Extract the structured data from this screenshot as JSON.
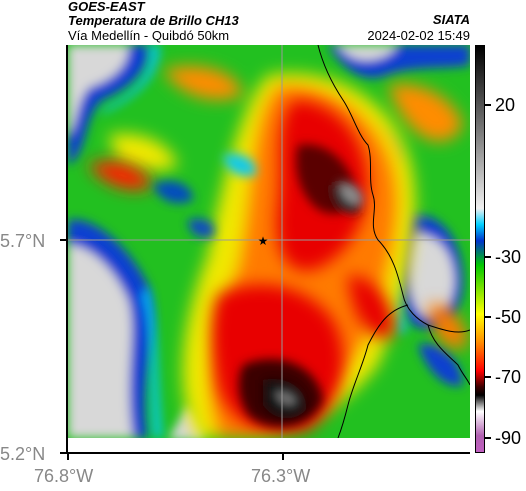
{
  "header": {
    "satellite": "GOES-EAST",
    "product": "Temperatura de Brillo CH13",
    "location": "Vía Medellín - Quibdó 50km",
    "brand": "SIATA",
    "datetime": "2024-02-02 15:49"
  },
  "axes": {
    "y_ticks": [
      {
        "label": "5.7°N",
        "value": 5.7
      },
      {
        "label": "5.2°N",
        "value": 5.2
      }
    ],
    "x_ticks": [
      {
        "label": "76.8°W",
        "value": -76.8
      },
      {
        "label": "76.3°W",
        "value": -76.3
      }
    ],
    "grid": true
  },
  "colorbar": {
    "unit_note": "",
    "ticks": [
      {
        "label": "20",
        "value": 20
      },
      {
        "label": "-30",
        "value": -30
      },
      {
        "label": "-50",
        "value": -50
      },
      {
        "label": "-70",
        "value": -70
      },
      {
        "label": "-90",
        "value": -90
      }
    ],
    "range": [
      -95,
      40
    ],
    "colors": [
      "#c060c0",
      "#ffffff",
      "#000000",
      "#ff0000",
      "#ff8c00",
      "#ffff00",
      "#00c800",
      "#00d0ff",
      "#0033cc",
      "#e0e0e0",
      "#000000"
    ]
  },
  "marker": {
    "symbol": "★",
    "name": "center-star"
  }
}
